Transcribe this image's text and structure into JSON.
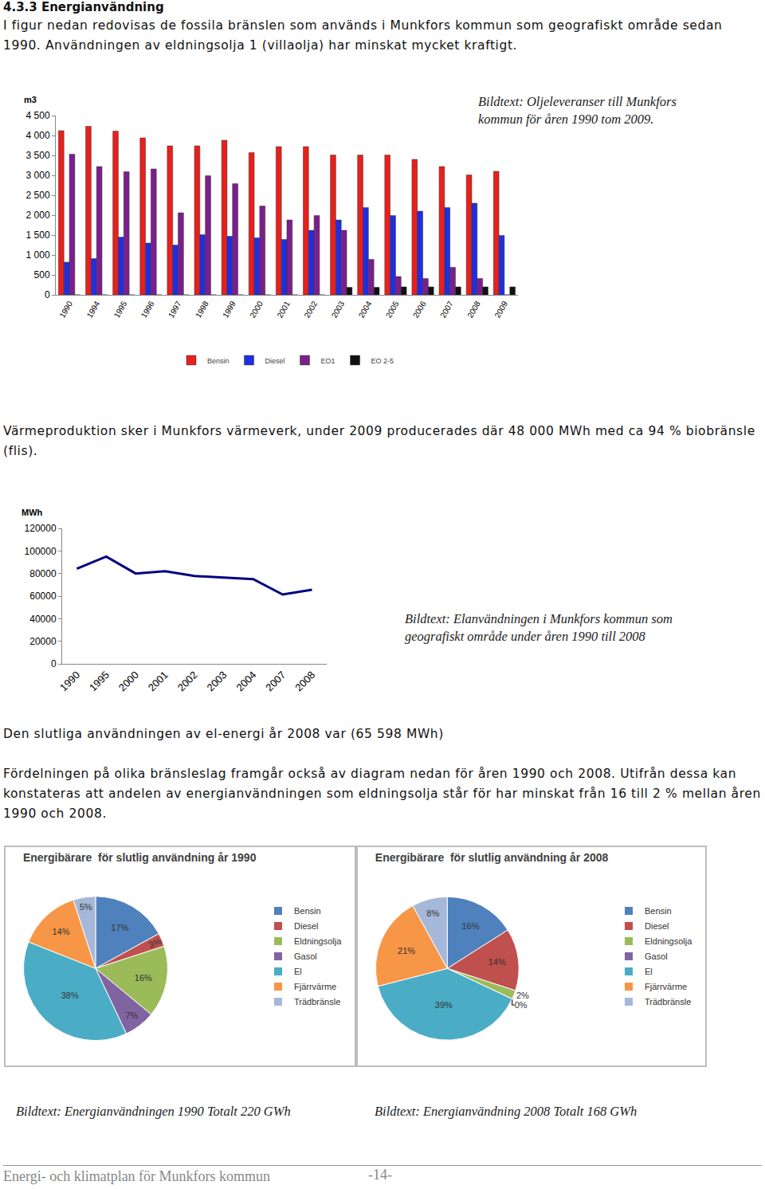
{
  "document": {
    "heading": "4.3.3 Energianvändning",
    "intro": "I figur nedan redovisas de fossila bränslen som används i Munkfors kommun som geografiskt område sedan 1990. Användningen av eldningsolja 1 (villaolja) har minskat mycket kraftigt.",
    "heat_text": "Värmeproduktion sker i Munkfors värmeverk, under 2009 producerades där 48 000 MWh med ca 94 % biobränsle (flis).",
    "el_text": "Den slutliga användningen av el-energi år 2008 var (65 598 MWh)",
    "distribution_text": "Fördelningen på olika bränsleslag framgår också av diagram nedan för åren 1990 och 2008. Utifrån dessa kan konstateras att andelen av energianvändningen som eldningsolja står för har minskat från 16 till 2 % mellan åren 1990 och 2008.",
    "captions": {
      "oil": "Bildtext: Oljeleveranser till Munkfors kommun för åren 1990 tom 2009.",
      "el": "Bildtext: Elanvändningen i Munkfors kommun som geografiskt område under åren 1990 till 2008",
      "pie_1990": "Bildtext: Energianvändningen 1990  Totalt  220 GWh",
      "pie_2008": "Bildtext: Energianvändning 2008 Totalt 168 GWh"
    },
    "footer": {
      "title": "Energi- och klimatplan för Munkfors kommun",
      "page": "-14-"
    }
  },
  "chart_data": [
    {
      "type": "bar",
      "y_label": "m3",
      "categories": [
        "1990",
        "1994",
        "1995",
        "1996",
        "1997",
        "1998",
        "1999",
        "2000",
        "2001",
        "2002",
        "2003",
        "2004",
        "2005",
        "2006",
        "2007",
        "2008",
        "2009"
      ],
      "series": [
        {
          "name": "Bensin",
          "color": "#e8201c",
          "values": [
            4120,
            4230,
            4110,
            3940,
            3740,
            3740,
            3880,
            3570,
            3720,
            3720,
            3510,
            3510,
            3510,
            3400,
            3220,
            3010,
            3100
          ]
        },
        {
          "name": "Diesel",
          "color": "#1f2fe0",
          "values": [
            820,
            910,
            1450,
            1300,
            1250,
            1510,
            1470,
            1430,
            1390,
            1620,
            1880,
            2190,
            1990,
            2100,
            2190,
            2300,
            1490
          ]
        },
        {
          "name": "EO1",
          "color": "#7b1f8c",
          "values": [
            3530,
            3220,
            3090,
            3160,
            2060,
            2990,
            2790,
            2230,
            1880,
            1990,
            1620,
            890,
            460,
            410,
            690,
            410,
            0
          ]
        },
        {
          "name": "EO 2-5",
          "color": "#111111",
          "values": [
            0,
            0,
            0,
            0,
            0,
            0,
            0,
            0,
            0,
            0,
            190,
            190,
            200,
            200,
            200,
            200,
            200
          ]
        }
      ],
      "ylim": [
        0,
        4500
      ],
      "yticks": [
        0,
        500,
        {
          "value": 1000,
          "label": "1 000"
        },
        {
          "value": 1500,
          "label": "1 500"
        },
        {
          "value": 2000,
          "label": "2 000"
        },
        {
          "value": 2500,
          "label": "2 500"
        },
        {
          "value": 3000,
          "label": "3 000"
        },
        {
          "value": 3500,
          "label": "3 500"
        },
        {
          "value": 4000,
          "label": "4 000"
        },
        {
          "value": 4500,
          "label": "4 500"
        }
      ],
      "grid": false,
      "legend": "bottom"
    },
    {
      "type": "line",
      "y_label": "MWh",
      "categories": [
        "1990",
        "1995",
        "2000",
        "2001",
        "2002",
        "2003",
        "2004",
        "2007",
        "2008"
      ],
      "values": [
        84300,
        95000,
        80000,
        82100,
        77800,
        76400,
        75000,
        61400,
        65600
      ],
      "color": "#000080",
      "ylim": [
        0,
        120000
      ],
      "yticks": [
        0,
        20000,
        40000,
        60000,
        80000,
        100000,
        120000
      ],
      "grid": false
    },
    {
      "type": "pie",
      "title": "Energibärare  för slutlig användning år 1990",
      "categories": [
        "Bensin",
        "Diesel",
        "Eldningsolja",
        "Gasol",
        "El",
        "Fjärrvärme",
        "Trädbränsle"
      ],
      "values": [
        17,
        3,
        16,
        7,
        38,
        14,
        5
      ],
      "value_labels": [
        "17%",
        "3%",
        "16%",
        "7%",
        "38%",
        "14%",
        "5%"
      ],
      "colors": [
        "#4f81bd",
        "#c0504d",
        "#9bbb59",
        "#8064a2",
        "#4bacc6",
        "#f79646",
        "#a5b8d9"
      ],
      "data_labels": true,
      "legend": "right"
    },
    {
      "type": "pie",
      "title": "Energibärare  för slutlig användning år 2008",
      "categories": [
        "Bensin",
        "Diesel",
        "Eldningsolja",
        "Gasol",
        "El",
        "Fjärrvärme",
        "Trädbränsle"
      ],
      "values": [
        16,
        14,
        2,
        0,
        39,
        21,
        8
      ],
      "value_labels": [
        "16%",
        "14%",
        "2%",
        "0%",
        "39%",
        "21%",
        "8%"
      ],
      "colors": [
        "#4f81bd",
        "#c0504d",
        "#9bbb59",
        "#8064a2",
        "#4bacc6",
        "#f79646",
        "#a5b8d9"
      ],
      "data_labels": true,
      "legend": "right"
    }
  ]
}
